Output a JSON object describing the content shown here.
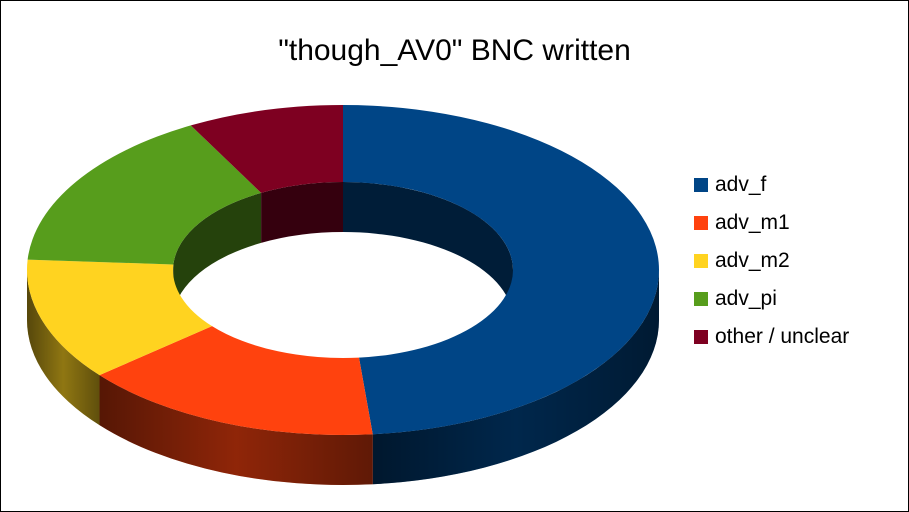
{
  "chart_data": {
    "type": "pie",
    "variant": "3d-donut",
    "title": "\"though_AV0\" BNC written",
    "categories": [
      "adv_f",
      "adv_m1",
      "adv_m2",
      "adv_pi",
      "other / unclear"
    ],
    "values": [
      48.5,
      15.5,
      12.0,
      16.0,
      8.0
    ],
    "unit": "percent",
    "colors": [
      "#004586",
      "#ff420e",
      "#ffd320",
      "#579d1c",
      "#7e0021"
    ],
    "legend": "right"
  }
}
